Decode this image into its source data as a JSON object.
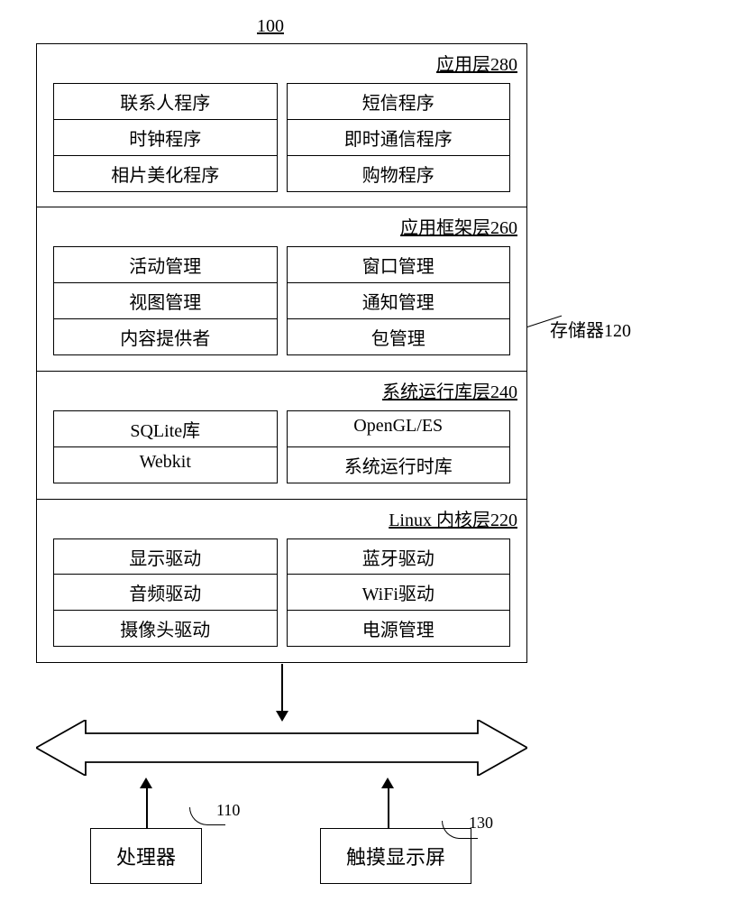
{
  "top_label": "100",
  "stack": {
    "border_color": "#000000",
    "background": "#ffffff",
    "font_family": "SimSun",
    "title_fontsize": 20,
    "cell_fontsize": 20,
    "layers": [
      {
        "title": "应用层280",
        "cells": [
          [
            "联系人程序",
            "短信程序"
          ],
          [
            "时钟程序",
            "即时通信程序"
          ],
          [
            "相片美化程序",
            "购物程序"
          ]
        ]
      },
      {
        "title": "应用框架层260",
        "cells": [
          [
            "活动管理",
            "窗口管理"
          ],
          [
            "视图管理",
            "通知管理"
          ],
          [
            "内容提供者",
            "包管理"
          ]
        ]
      },
      {
        "title": "系统运行库层240",
        "cells": [
          [
            "SQLite库",
            "OpenGL/ES"
          ],
          [
            "Webkit",
            "系统运行时库"
          ]
        ]
      },
      {
        "title": "Linux 内核层220",
        "cells": [
          [
            "显示驱动",
            "蓝牙驱动"
          ],
          [
            "音频驱动",
            "WiFi驱动"
          ],
          [
            "摄像头驱动",
            "电源管理"
          ]
        ]
      }
    ]
  },
  "annotation": {
    "text": "存储器120"
  },
  "double_arrow": {
    "stroke": "#000000",
    "stroke_width": 1.8,
    "fill": "#ffffff"
  },
  "processor": {
    "label": "处理器",
    "num": "110"
  },
  "touch": {
    "label": "触摸显示屏",
    "num": "130"
  }
}
